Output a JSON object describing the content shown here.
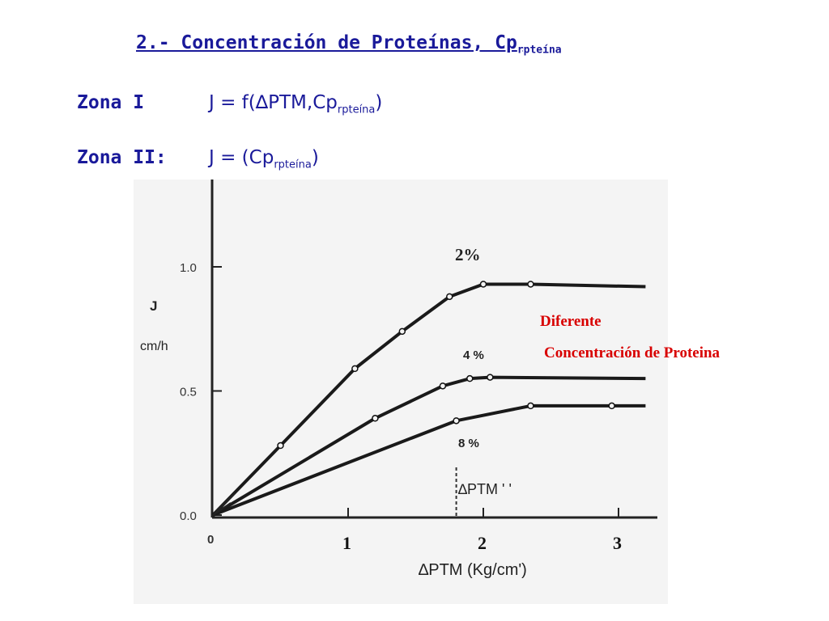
{
  "header": {
    "title_main": "2.- Concentración de Proteínas, Cp",
    "title_sub": "rpteína",
    "zone1_label": "Zona I",
    "zone1_formula_pre": "J = f(∆PTM,Cp",
    "zone1_formula_sub": "rpteína",
    "zone1_formula_post": ")",
    "zone2_label": "Zona II:",
    "zone2_formula_pre": "J = (Cp",
    "zone2_formula_sub": "rpteína",
    "zone2_formula_post": ")"
  },
  "chart_data": {
    "type": "line",
    "ylabel_line1": "J",
    "ylabel_line2": "cm/h",
    "xlabel": "∆PTM (Kg/cm",
    "xlabel_suffix": "')",
    "y_ticks": [
      "0.0",
      "0.5",
      "1.0"
    ],
    "x_ticks": [
      "0",
      "1",
      "2",
      "3"
    ],
    "xlim": [
      0,
      3.2
    ],
    "ylim": [
      0,
      1.2
    ],
    "series": [
      {
        "name": "2%",
        "x": [
          0,
          0.5,
          1.05,
          1.4,
          1.75,
          2.0,
          2.35,
          3.2
        ],
        "y": [
          0,
          0.28,
          0.59,
          0.74,
          0.88,
          0.93,
          0.93,
          0.92
        ]
      },
      {
        "name": "4 %",
        "x": [
          0,
          1.2,
          1.7,
          1.9,
          2.05,
          3.2
        ],
        "y": [
          0,
          0.39,
          0.52,
          0.55,
          0.555,
          0.55
        ]
      },
      {
        "name": "8 %",
        "x": [
          0,
          1.8,
          2.35,
          2.95,
          3.2
        ],
        "y": [
          0,
          0.38,
          0.44,
          0.44,
          0.44
        ]
      }
    ],
    "annotations": {
      "dashed_line_label": "∆PTM ' '",
      "dashed_line_x": 1.8,
      "legend_text_1": "Diferente",
      "legend_text_2": "Concentración de Proteina"
    },
    "colors": {
      "legend_text": "#d80000",
      "curves": "#1a1a1a",
      "axis": "#222222"
    }
  }
}
